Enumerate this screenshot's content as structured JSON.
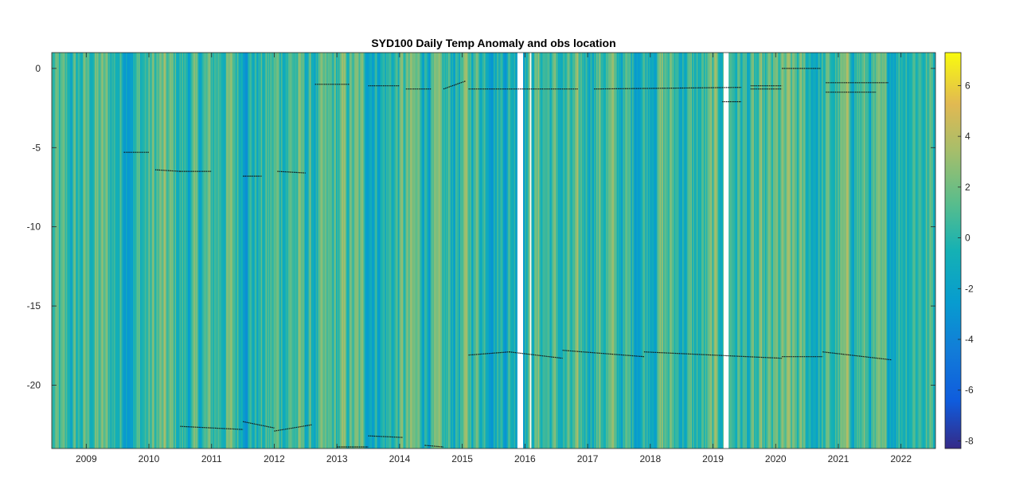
{
  "chart_data": {
    "type": "heatmap",
    "title": "SYD100 Daily Temp Anomaly and obs location",
    "xlabel": "",
    "ylabel": "",
    "xlim": [
      2008.45,
      2022.55
    ],
    "ylim": [
      -24,
      1
    ],
    "x_ticks": [
      "2009",
      "2010",
      "2011",
      "2012",
      "2013",
      "2014",
      "2015",
      "2016",
      "2017",
      "2018",
      "2019",
      "2020",
      "2021",
      "2022"
    ],
    "y_ticks": [
      "0",
      "-5",
      "-10",
      "-15",
      "-20"
    ],
    "colorbar": {
      "colormap": "parula",
      "range": [
        -8.3,
        7.3
      ],
      "ticks": [
        "6",
        "4",
        "2",
        "0",
        "-2",
        "-4",
        "-6",
        "-8"
      ]
    },
    "data_gaps": [
      [
        2015.88,
        2015.97
      ],
      [
        2016.08,
        2016.1
      ],
      [
        2019.17,
        2019.25
      ]
    ],
    "obs_location_segments": [
      {
        "x": [
          2009.6,
          2010.0
        ],
        "y": [
          -5.3,
          -5.3
        ]
      },
      {
        "x": [
          2010.1,
          2010.5
        ],
        "y": [
          -6.4,
          -6.5
        ]
      },
      {
        "x": [
          2010.5,
          2011.0
        ],
        "y": [
          -6.5,
          -6.5
        ]
      },
      {
        "x": [
          2011.5,
          2011.8
        ],
        "y": [
          -6.8,
          -6.8
        ]
      },
      {
        "x": [
          2012.05,
          2012.5
        ],
        "y": [
          -6.5,
          -6.6
        ]
      },
      {
        "x": [
          2012.65,
          2013.2
        ],
        "y": [
          -1.0,
          -1.0
        ]
      },
      {
        "x": [
          2013.5,
          2014.0
        ],
        "y": [
          -1.1,
          -1.1
        ]
      },
      {
        "x": [
          2014.1,
          2014.5
        ],
        "y": [
          -1.3,
          -1.3
        ]
      },
      {
        "x": [
          2014.7,
          2015.05
        ],
        "y": [
          -1.3,
          -0.8
        ]
      },
      {
        "x": [
          2015.1,
          2016.85
        ],
        "y": [
          -1.3,
          -1.3
        ]
      },
      {
        "x": [
          2017.1,
          2019.45
        ],
        "y": [
          -1.3,
          -1.2
        ]
      },
      {
        "x": [
          2019.6,
          2020.1
        ],
        "y": [
          -1.1,
          -1.1
        ]
      },
      {
        "x": [
          2019.6,
          2020.1
        ],
        "y": [
          -1.3,
          -1.3
        ]
      },
      {
        "x": [
          2019.15,
          2019.45
        ],
        "y": [
          -2.1,
          -2.1
        ]
      },
      {
        "x": [
          2020.1,
          2020.72
        ],
        "y": [
          0.0,
          0.0
        ]
      },
      {
        "x": [
          2020.8,
          2021.8
        ],
        "y": [
          -0.9,
          -0.9
        ]
      },
      {
        "x": [
          2020.8,
          2021.6
        ],
        "y": [
          -1.5,
          -1.5
        ]
      },
      {
        "x": [
          2010.5,
          2011.5
        ],
        "y": [
          -22.6,
          -22.8
        ]
      },
      {
        "x": [
          2011.5,
          2012.0
        ],
        "y": [
          -22.3,
          -22.7
        ]
      },
      {
        "x": [
          2012.0,
          2012.6
        ],
        "y": [
          -22.9,
          -22.5
        ]
      },
      {
        "x": [
          2013.0,
          2013.5
        ],
        "y": [
          -23.9,
          -23.9
        ]
      },
      {
        "x": [
          2013.5,
          2014.05
        ],
        "y": [
          -23.2,
          -23.3
        ]
      },
      {
        "x": [
          2014.4,
          2014.7
        ],
        "y": [
          -23.8,
          -23.9
        ]
      },
      {
        "x": [
          2015.1,
          2015.75
        ],
        "y": [
          -18.1,
          -17.9
        ]
      },
      {
        "x": [
          2015.75,
          2016.6
        ],
        "y": [
          -17.9,
          -18.3
        ]
      },
      {
        "x": [
          2016.6,
          2017.9
        ],
        "y": [
          -17.8,
          -18.2
        ]
      },
      {
        "x": [
          2017.9,
          2020.1
        ],
        "y": [
          -17.9,
          -18.3
        ]
      },
      {
        "x": [
          2020.1,
          2020.75
        ],
        "y": [
          -18.2,
          -18.2
        ]
      },
      {
        "x": [
          2020.75,
          2021.85
        ],
        "y": [
          -17.9,
          -18.4
        ]
      }
    ]
  }
}
